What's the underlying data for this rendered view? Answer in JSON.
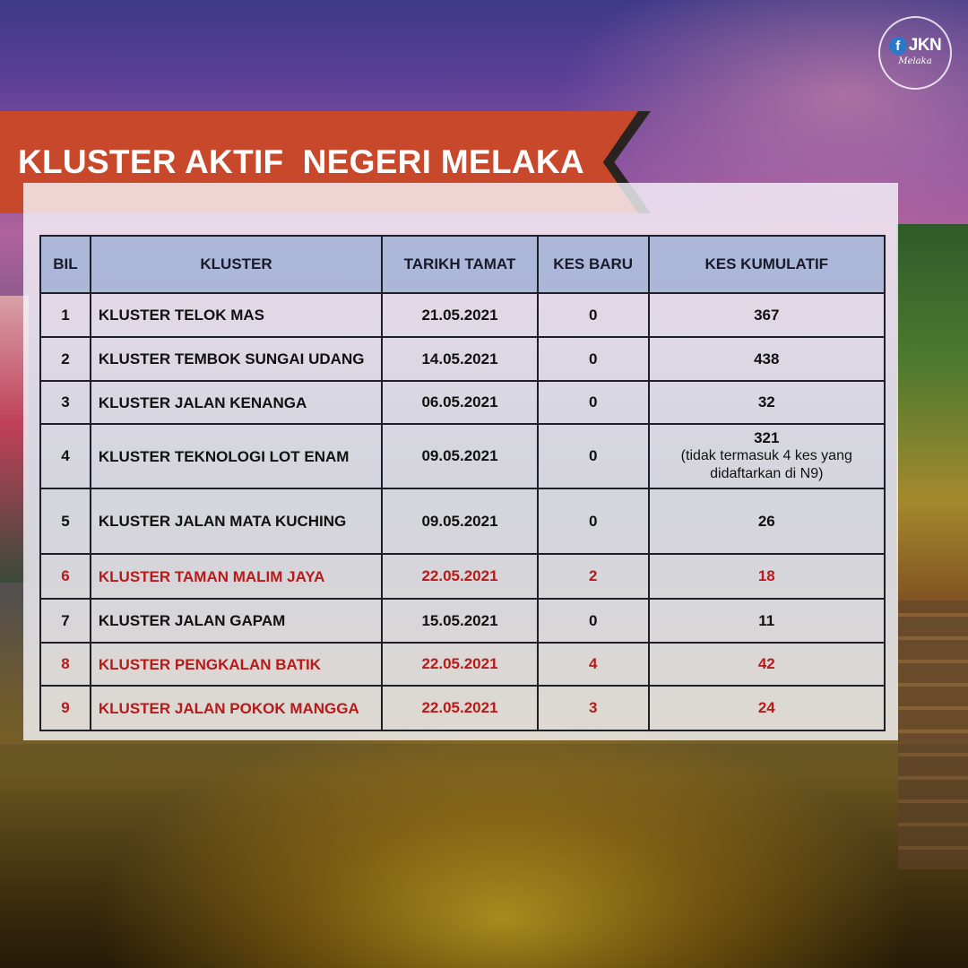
{
  "header": {
    "title": "KLUSTER AKTIF  NEGERI MELAKA",
    "logo": {
      "icon": "facebook-icon",
      "text": "JKN",
      "subtext": "Melaka"
    }
  },
  "table": {
    "columns": [
      "BIL",
      "KLUSTER",
      "TARIKH TAMAT",
      "KES BARU",
      "KES KUMULATIF"
    ],
    "rows": [
      {
        "bil": "1",
        "kluster": "KLUSTER TELOK MAS",
        "tarikh": "21.05.2021",
        "baru": "0",
        "kumulatif": "367",
        "note": "",
        "highlight": false
      },
      {
        "bil": "2",
        "kluster": "KLUSTER TEMBOK SUNGAI UDANG",
        "tarikh": "14.05.2021",
        "baru": "0",
        "kumulatif": "438",
        "note": "",
        "highlight": false
      },
      {
        "bil": "3",
        "kluster": "KLUSTER JALAN KENANGA",
        "tarikh": "06.05.2021",
        "baru": "0",
        "kumulatif": "32",
        "note": "",
        "highlight": false
      },
      {
        "bil": "4",
        "kluster": "KLUSTER TEKNOLOGI LOT ENAM",
        "tarikh": "09.05.2021",
        "baru": "0",
        "kumulatif": "321",
        "note": "(tidak termasuk 4 kes yang didaftarkan di N9)",
        "highlight": false
      },
      {
        "bil": "5",
        "kluster": "KLUSTER JALAN MATA KUCHING",
        "tarikh": "09.05.2021",
        "baru": "0",
        "kumulatif": "26",
        "note": "",
        "highlight": false
      },
      {
        "bil": "6",
        "kluster": "KLUSTER TAMAN MALIM JAYA",
        "tarikh": "22.05.2021",
        "baru": "2",
        "kumulatif": "18",
        "note": "",
        "highlight": true
      },
      {
        "bil": "7",
        "kluster": "KLUSTER JALAN GAPAM",
        "tarikh": "15.05.2021",
        "baru": "0",
        "kumulatif": "11",
        "note": "",
        "highlight": false
      },
      {
        "bil": "8",
        "kluster": "KLUSTER PENGKALAN BATIK",
        "tarikh": "22.05.2021",
        "baru": "4",
        "kumulatif": "42",
        "note": "",
        "highlight": true
      },
      {
        "bil": "9",
        "kluster": "KLUSTER JALAN POKOK MANGGA",
        "tarikh": "22.05.2021",
        "baru": "3",
        "kumulatif": "24",
        "note": "",
        "highlight": true
      }
    ]
  },
  "colors": {
    "banner": "#c8482c",
    "header_row": "#96aad2",
    "highlight_text": "#b81a1a"
  }
}
